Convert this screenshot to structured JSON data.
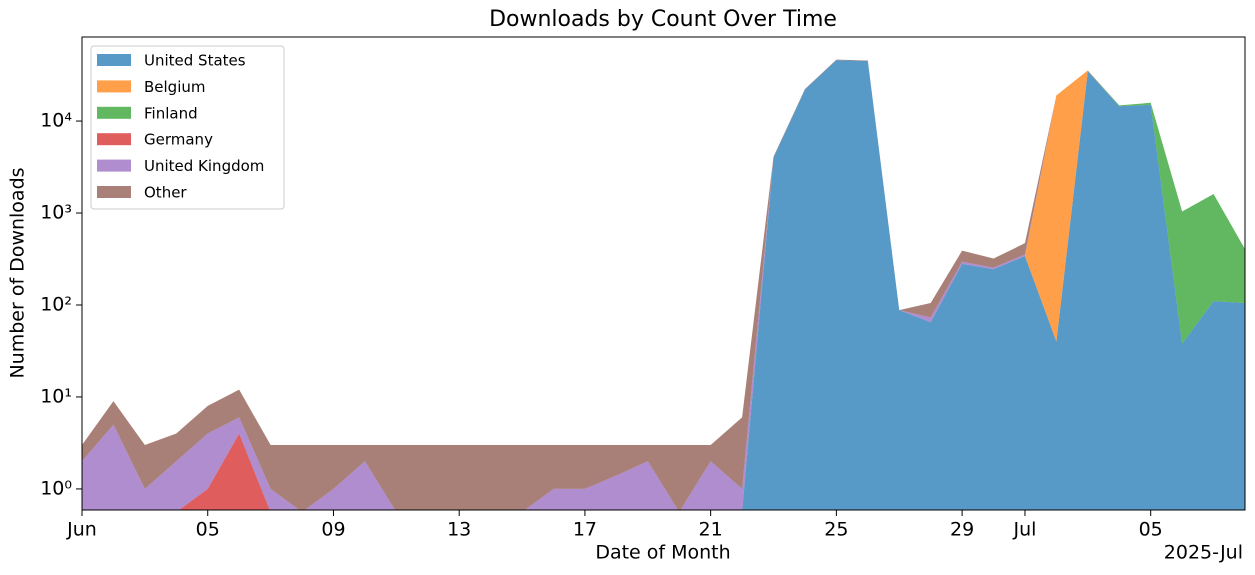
{
  "chart_data": {
    "type": "stacked_area",
    "title": "Downloads by Count Over Time",
    "x_label": "Date of Month",
    "y_label": "Number of Downloads",
    "x_offset_label": "2025-Jul",
    "x": [
      "2025-06-01",
      "2025-06-02",
      "2025-06-03",
      "2025-06-04",
      "2025-06-05",
      "2025-06-06",
      "2025-06-07",
      "2025-06-08",
      "2025-06-09",
      "2025-06-10",
      "2025-06-11",
      "2025-06-12",
      "2025-06-13",
      "2025-06-14",
      "2025-06-15",
      "2025-06-16",
      "2025-06-17",
      "2025-06-18",
      "2025-06-19",
      "2025-06-20",
      "2025-06-21",
      "2025-06-22",
      "2025-06-23",
      "2025-06-24",
      "2025-06-25",
      "2025-06-26",
      "2025-06-27",
      "2025-06-28",
      "2025-06-29",
      "2025-06-30",
      "2025-07-01",
      "2025-07-02",
      "2025-07-03",
      "2025-07-04",
      "2025-07-05",
      "2025-07-06",
      "2025-07-07",
      "2025-07-08"
    ],
    "xlim": [
      "2025-06-01",
      "2025-07-08"
    ],
    "xticks": [
      {
        "value": "2025-06-01",
        "label": "Jun"
      },
      {
        "value": "2025-06-05",
        "label": "05"
      },
      {
        "value": "2025-06-09",
        "label": "09"
      },
      {
        "value": "2025-06-13",
        "label": "13"
      },
      {
        "value": "2025-06-17",
        "label": "17"
      },
      {
        "value": "2025-06-21",
        "label": "21"
      },
      {
        "value": "2025-06-25",
        "label": "25"
      },
      {
        "value": "2025-06-29",
        "label": "29"
      },
      {
        "value": "2025-07-01",
        "label": "Jul"
      },
      {
        "value": "2025-07-05",
        "label": "05"
      }
    ],
    "ylim": [
      0.59,
      82000
    ],
    "yticks": [
      {
        "value": 1,
        "label": "10⁰"
      },
      {
        "value": 10,
        "label": "10¹"
      },
      {
        "value": 100,
        "label": "10²"
      },
      {
        "value": 1000,
        "label": "10³"
      },
      {
        "value": 10000,
        "label": "10⁴"
      }
    ],
    "log_y": true,
    "legend": "upper left",
    "series": [
      {
        "name": "United States",
        "color": "#1f77b4",
        "values": [
          0,
          0,
          0,
          0,
          0,
          0,
          0,
          0,
          0,
          0,
          0,
          0,
          0,
          0,
          0,
          0,
          0,
          0,
          0,
          0,
          0,
          0,
          4000,
          22000,
          46000,
          45000,
          88,
          65,
          280,
          245,
          340,
          40,
          35000,
          14500,
          15000,
          38,
          110,
          105
        ]
      },
      {
        "name": "Belgium",
        "color": "#ff7f0e",
        "values": [
          0,
          0,
          0,
          0,
          0,
          0,
          0,
          0,
          0,
          0,
          0,
          0,
          0,
          0,
          0,
          0,
          0,
          0,
          0,
          0,
          0,
          0,
          0,
          0,
          0,
          0,
          0,
          0,
          0,
          0,
          0,
          19000,
          600,
          0,
          0,
          0,
          0,
          0
        ]
      },
      {
        "name": "Finland",
        "color": "#2ca02c",
        "values": [
          0,
          0,
          0,
          0,
          0,
          0,
          0,
          0,
          0,
          0,
          0,
          0,
          0,
          0,
          0,
          0,
          0,
          0,
          0,
          0,
          0,
          0,
          0,
          0,
          0,
          0,
          0,
          0,
          0,
          0,
          0,
          0,
          0,
          300,
          800,
          1000,
          1500,
          300
        ]
      },
      {
        "name": "Germany",
        "color": "#d62728",
        "values": [
          0,
          0,
          0,
          0,
          1,
          4,
          0,
          0,
          0,
          0,
          0,
          0,
          0,
          0,
          0,
          0,
          0,
          0,
          0,
          0,
          0,
          0,
          0,
          0,
          0,
          0,
          0,
          0,
          0,
          0,
          0,
          0,
          0,
          0,
          0,
          0,
          0,
          0
        ]
      },
      {
        "name": "United Kingdom",
        "color": "#9467bd",
        "values": [
          2,
          5,
          1,
          2,
          3,
          2,
          1,
          0,
          1,
          2,
          0,
          0,
          0,
          0,
          0,
          1,
          1,
          1.4,
          2,
          0,
          2,
          1,
          0,
          0,
          0,
          0,
          0,
          8,
          15,
          10,
          15,
          0,
          0,
          0,
          0,
          0,
          0,
          0
        ]
      },
      {
        "name": "Other",
        "color": "#8c564b",
        "values": [
          1,
          4,
          2,
          2,
          4,
          6,
          2,
          3,
          2,
          1,
          3,
          3,
          3,
          3,
          3,
          2,
          2,
          1.6,
          1,
          3,
          1,
          5,
          100,
          300,
          500,
          500,
          0,
          32,
          95,
          65,
          115,
          0,
          0,
          0,
          0,
          0,
          0,
          0
        ]
      }
    ]
  }
}
